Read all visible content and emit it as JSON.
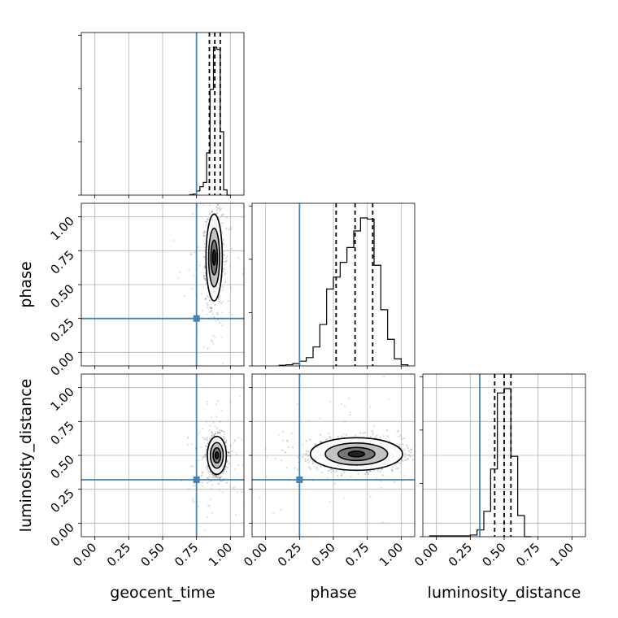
{
  "chart_data": {
    "type": "corner",
    "parameters": [
      "geocent_time",
      "phase",
      "luminosity_distance"
    ],
    "axis_labels": {
      "x": [
        "geocent_time",
        "phase",
        "luminosity_distance"
      ],
      "y": [
        "",
        "phase",
        "luminosity_distance"
      ]
    },
    "tick_values": [
      0.0,
      0.25,
      0.5,
      0.75,
      1.0
    ],
    "tick_labels": [
      "0.00",
      "0.25",
      "0.50",
      "0.75",
      "1.00"
    ],
    "axis_range": [
      -0.1,
      1.1
    ],
    "grid": true,
    "truth_color": "#4682b4",
    "truths": {
      "geocent_time": 0.75,
      "phase": 0.25,
      "luminosity_distance": 0.32
    },
    "histograms": [
      {
        "parameter": "geocent_time",
        "bin_edges": [
          0.7,
          0.725,
          0.75,
          0.775,
          0.8,
          0.825,
          0.85,
          0.875,
          0.9,
          0.925,
          0.95,
          0.975,
          1.0
        ],
        "counts": [
          0.5,
          1,
          4,
          8,
          12,
          40,
          100,
          140,
          138,
          60,
          5,
          0
        ],
        "quantiles": [
          0.845,
          0.885,
          0.925
        ]
      },
      {
        "parameter": "phase",
        "bin_edges": [
          0.1,
          0.15,
          0.2,
          0.25,
          0.3,
          0.35,
          0.4,
          0.45,
          0.5,
          0.55,
          0.6,
          0.65,
          0.7,
          0.75,
          0.8,
          0.85,
          0.9,
          0.95,
          1.0,
          1.05
        ],
        "counts": [
          1,
          2,
          4,
          8,
          14,
          32,
          70,
          130,
          150,
          175,
          200,
          228,
          250,
          248,
          170,
          95,
          45,
          12,
          2
        ],
        "quantiles": [
          0.52,
          0.66,
          0.79
        ]
      },
      {
        "parameter": "luminosity_distance",
        "bin_edges": [
          -0.05,
          0.0,
          0.05,
          0.1,
          0.15,
          0.2,
          0.25,
          0.3,
          0.35,
          0.4,
          0.45,
          0.5,
          0.55,
          0.6,
          0.65,
          0.7
        ],
        "counts": [
          1,
          1,
          1,
          1,
          1,
          1,
          2,
          8,
          30,
          80,
          170,
          175,
          95,
          25,
          0
        ],
        "quantiles": [
          0.43,
          0.5,
          0.55
        ]
      }
    ],
    "scatter_panels": [
      {
        "x": "geocent_time",
        "y": "phase",
        "center": [
          0.88,
          0.7
        ],
        "spread": [
          0.03,
          0.16
        ]
      },
      {
        "x": "geocent_time",
        "y": "luminosity_distance",
        "center": [
          0.9,
          0.5
        ],
        "spread": [
          0.035,
          0.07
        ]
      },
      {
        "x": "phase",
        "y": "luminosity_distance",
        "center": [
          0.67,
          0.51
        ],
        "spread": [
          0.17,
          0.06
        ]
      }
    ]
  }
}
